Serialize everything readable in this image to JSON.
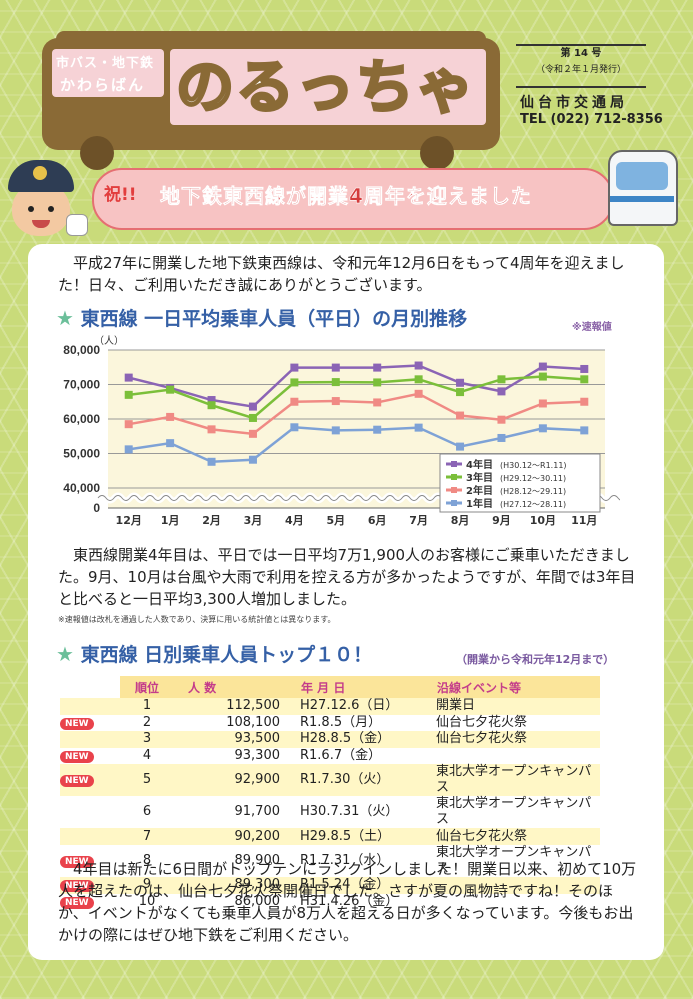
{
  "header": {
    "subtitle_top": "市バス・地下鉄",
    "subtitle_bottom": "かわらばん",
    "logo": "のるっちゃ",
    "issue_no": "第 14 号",
    "issue_date": "（令和２年１月発行）",
    "department": "仙台市交通局",
    "tel": "TEL (022) 712-8356"
  },
  "banner": {
    "badge": "祝!!",
    "text": "地下鉄東西線が開業4周年を迎えました"
  },
  "intro": "平成27年に開業した地下鉄東西線は、令和元年12月6日をもって4周年を迎えました！日々、ご利用いただき誠にありがとうございます。",
  "section1": {
    "title": "東西線 一日平均乗車人員（平日）の月別推移",
    "note": "※速報値"
  },
  "chart_data": {
    "type": "line",
    "ylabel": "（人）",
    "categories": [
      "12月",
      "1月",
      "2月",
      "3月",
      "4月",
      "5月",
      "6月",
      "7月",
      "8月",
      "9月",
      "10月",
      "11月"
    ],
    "yticks": [
      "80,000",
      "70,000",
      "60,000",
      "50,000",
      "40,000",
      "0"
    ],
    "ylim": [
      40000,
      80000
    ],
    "axis_break": true,
    "legend_position": "bottom-right",
    "grid": true,
    "series": [
      {
        "name": "4年目",
        "period": "(H30.12～R1.11)",
        "color": "#8b64b5",
        "values": [
          72000,
          69000,
          65500,
          63600,
          74900,
          74900,
          74900,
          75500,
          70500,
          68000,
          75200,
          74500
        ]
      },
      {
        "name": "3年目",
        "period": "(H29.12～30.11)",
        "color": "#7bbf3a",
        "values": [
          67000,
          68500,
          64000,
          60300,
          70600,
          70700,
          70600,
          71500,
          67800,
          71500,
          72300,
          71500
        ]
      },
      {
        "name": "2年目",
        "period": "(H28.12～29.11)",
        "color": "#f08a84",
        "values": [
          58500,
          60600,
          57000,
          55700,
          65000,
          65200,
          64800,
          67300,
          61000,
          59800,
          64500,
          65000
        ]
      },
      {
        "name": "1年目",
        "period": "(H27.12～28.11)",
        "color": "#7ea2d6",
        "values": [
          51200,
          53000,
          47600,
          48200,
          57600,
          56700,
          56900,
          57500,
          52000,
          54500,
          57300,
          56700
        ]
      }
    ]
  },
  "body2": "東西線開業4年目は、平日では一日平均7万1,900人のお客様にご乗車いただきました。9月、10月は台風や大雨で利用を控える方が多かったようですが、年間では3年目と比べると一日平均3,300人増加しました。",
  "footnote1": "※速報値は改札を通過した人数であり、決算に用いる統計値とは異なります。",
  "section2": {
    "title": "東西線 日別乗車人員トップ１０！",
    "note": "（開業から令和元年12月まで）"
  },
  "table": {
    "headers": {
      "rank": "順位",
      "people": "人 数",
      "date": "年 月 日",
      "event": "沿線イベント等"
    },
    "new_label": "NEW",
    "rows": [
      {
        "new": false,
        "rank": "1",
        "people": "112,500",
        "date": "H27.12.6（日）",
        "event": "開業日"
      },
      {
        "new": true,
        "rank": "2",
        "people": "108,100",
        "date": "R1.8.5（月）",
        "event": "仙台七夕花火祭"
      },
      {
        "new": false,
        "rank": "3",
        "people": "93,500",
        "date": "H28.8.5（金）",
        "event": "仙台七夕花火祭"
      },
      {
        "new": true,
        "rank": "4",
        "people": "93,300",
        "date": "R1.6.7（金）",
        "event": ""
      },
      {
        "new": true,
        "rank": "5",
        "people": "92,900",
        "date": "R1.7.30（火）",
        "event": "東北大学オープンキャンパス"
      },
      {
        "new": false,
        "rank": "6",
        "people": "91,700",
        "date": "H30.7.31（火）",
        "event": "東北大学オープンキャンパス"
      },
      {
        "new": false,
        "rank": "7",
        "people": "90,200",
        "date": "H29.8.5（土）",
        "event": "仙台七夕花火祭"
      },
      {
        "new": true,
        "rank": "8",
        "people": "89,900",
        "date": "R1.7.31（水）",
        "event": "東北大学オープンキャンパス"
      },
      {
        "new": true,
        "rank": "9",
        "people": "89,300",
        "date": "R1.5.24（金）",
        "event": ""
      },
      {
        "new": true,
        "rank": "10",
        "people": "86,000",
        "date": "H31.4.26（金）",
        "event": ""
      }
    ]
  },
  "closing": "4年目は新たに6日間がトップテンにランクインしました！開業日以来、初めて10万人を超えたのは、仙台七夕花火祭開催日でした。さすが夏の風物詩ですね！そのほか、イベントがなくても乗車人員が8万人を超える日が多くなっています。今後もお出かけの際にはぜひ地下鉄をご利用ください。"
}
